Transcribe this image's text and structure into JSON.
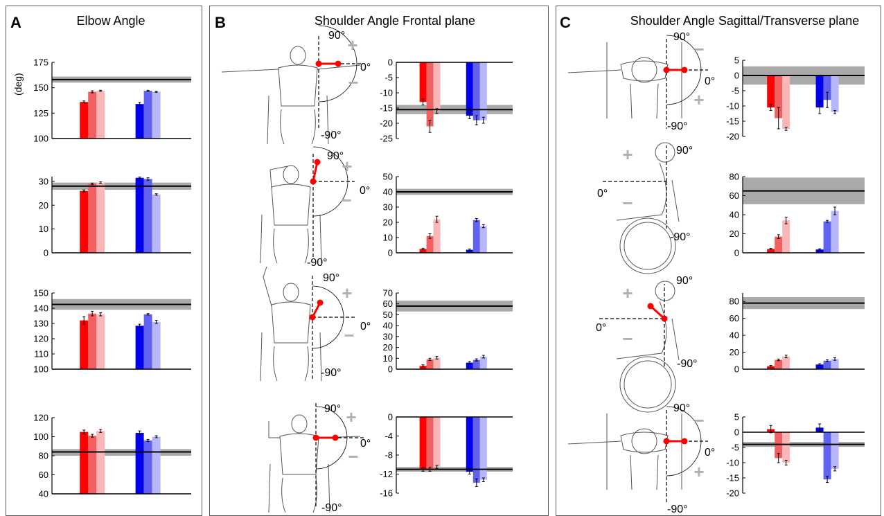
{
  "panels": [
    {
      "letter": "A",
      "title": "Elbow Angle"
    },
    {
      "letter": "B",
      "title": "Shoulder Angle Frontal plane"
    },
    {
      "letter": "C",
      "title": "Shoulder Angle Sagittal/Transverse plane"
    }
  ],
  "ylabel_deg": "(deg)",
  "angle_labels": {
    "deg90": "90°",
    "deg0": "0°",
    "degm90": "-90°"
  },
  "sign_symbols": {
    "plus": "+",
    "minus": "−"
  },
  "colors": {
    "red": [
      "#ff0000",
      "#f06060",
      "#f8b6b6"
    ],
    "blue": [
      "#0000ee",
      "#6262f0",
      "#b6b6f8"
    ],
    "band": "#a9a9a9",
    "refline": "#000000"
  },
  "chart_data": [
    {
      "id": "A1",
      "type": "bar",
      "ylim": [
        100,
        175
      ],
      "yticks": [
        100,
        125,
        150,
        175
      ],
      "reference": {
        "value": 158,
        "band": [
          155,
          161
        ]
      },
      "series": [
        {
          "values": [
            136,
            146,
            147
          ]
        },
        {
          "values": [
            134,
            147,
            146
          ]
        }
      ],
      "errors": [
        [
          1,
          1,
          0.5
        ],
        [
          1.5,
          0.5,
          0.5
        ]
      ]
    },
    {
      "id": "A2",
      "type": "bar",
      "ylim": [
        0,
        32
      ],
      "yticks": [
        0,
        10,
        20,
        30
      ],
      "reference": {
        "value": 28,
        "band": [
          26.5,
          29.5
        ]
      },
      "series": [
        {
          "values": [
            26,
            29,
            29.5
          ]
        },
        {
          "values": [
            31.5,
            31,
            24.5
          ]
        }
      ],
      "errors": [
        [
          0.4,
          0.3,
          0.3
        ],
        [
          0.3,
          0.5,
          0.3
        ]
      ]
    },
    {
      "id": "A3",
      "type": "bar",
      "ylim": [
        100,
        150
      ],
      "yticks": [
        100,
        110,
        120,
        130,
        140,
        150
      ],
      "reference": {
        "value": 142.5,
        "band": [
          139,
          146
        ]
      },
      "series": [
        {
          "values": [
            132,
            136.5,
            136
          ]
        },
        {
          "values": [
            128.5,
            136,
            131
          ]
        }
      ],
      "errors": [
        [
          2.5,
          1.5,
          1
        ],
        [
          1,
          0.5,
          1
        ]
      ]
    },
    {
      "id": "A4",
      "type": "bar",
      "ylim": [
        40,
        120
      ],
      "yticks": [
        40,
        60,
        80,
        100,
        120
      ],
      "reference": {
        "value": 84,
        "band": [
          80,
          87
        ]
      },
      "series": [
        {
          "values": [
            105,
            101,
            106
          ]
        },
        {
          "values": [
            104,
            96,
            100
          ]
        }
      ],
      "errors": [
        [
          2,
          1.5,
          1.5
        ],
        [
          2,
          1,
          1
        ]
      ]
    },
    {
      "id": "B1",
      "type": "bar",
      "ylim": [
        -25,
        0
      ],
      "yticks": [
        0,
        -5,
        -10,
        -15,
        -20,
        -25
      ],
      "reference": {
        "value": -15.5,
        "band": [
          -17,
          -14
        ]
      },
      "series": [
        {
          "values": [
            -13,
            -21,
            -16
          ]
        },
        {
          "values": [
            -17.5,
            -19,
            -19
          ]
        }
      ],
      "errors": [
        [
          1,
          2,
          0.8
        ],
        [
          1,
          1.5,
          1
        ]
      ]
    },
    {
      "id": "B2",
      "type": "bar",
      "ylim": [
        0,
        50
      ],
      "yticks": [
        0,
        10,
        20,
        30,
        40,
        50
      ],
      "reference": {
        "value": 40,
        "band": [
          38,
          42
        ]
      },
      "series": [
        {
          "values": [
            2.5,
            11,
            22
          ]
        },
        {
          "values": [
            2,
            21.5,
            17.5
          ]
        }
      ],
      "errors": [
        [
          0.5,
          1.5,
          2
        ],
        [
          0.5,
          1,
          1
        ]
      ]
    },
    {
      "id": "B3",
      "type": "bar",
      "ylim": [
        0,
        70
      ],
      "yticks": [
        0,
        10,
        20,
        30,
        40,
        50,
        60,
        70
      ],
      "reference": {
        "value": 58,
        "band": [
          53,
          63
        ]
      },
      "series": [
        {
          "values": [
            3,
            9,
            10.5
          ]
        },
        {
          "values": [
            6,
            8.5,
            11.5
          ]
        }
      ],
      "errors": [
        [
          1,
          1,
          1.2
        ],
        [
          1,
          1,
          1.2
        ]
      ]
    },
    {
      "id": "B4",
      "type": "bar",
      "ylim": [
        -16,
        0
      ],
      "yticks": [
        0,
        -4,
        -8,
        -12,
        -16
      ],
      "reference": {
        "value": -11,
        "band": [
          -11.5,
          -10.5
        ]
      },
      "series": [
        {
          "values": [
            -11,
            -11,
            -10.5
          ]
        },
        {
          "values": [
            -11.5,
            -13.8,
            -13.2
          ]
        }
      ],
      "errors": [
        [
          0.4,
          0.4,
          0.3
        ],
        [
          0.5,
          0.8,
          0.4
        ]
      ]
    },
    {
      "id": "C1",
      "type": "bar",
      "ylim": [
        -20,
        5
      ],
      "yticks": [
        5,
        0,
        -5,
        -10,
        -15,
        -20
      ],
      "reference": {
        "value": 0,
        "band": [
          -3,
          3
        ]
      },
      "series": [
        {
          "values": [
            -10.5,
            -14,
            -17.5
          ]
        },
        {
          "values": [
            -10.5,
            -8,
            -12
          ]
        }
      ],
      "errors": [
        [
          1,
          3.5,
          0.5
        ],
        [
          2,
          2.5,
          0.5
        ]
      ]
    },
    {
      "id": "C2",
      "type": "bar",
      "ylim": [
        0,
        80
      ],
      "yticks": [
        0,
        20,
        40,
        60,
        80
      ],
      "reference": {
        "value": 65,
        "band": [
          51,
          79
        ]
      },
      "series": [
        {
          "values": [
            4,
            17,
            34
          ]
        },
        {
          "values": [
            3.5,
            33,
            44
          ]
        }
      ],
      "errors": [
        [
          0.7,
          2,
          3.5
        ],
        [
          0.7,
          1,
          4
        ]
      ]
    },
    {
      "id": "C3",
      "type": "bar",
      "ylim": [
        0,
        90
      ],
      "yticks": [
        0,
        20,
        40,
        60,
        80
      ],
      "reference": {
        "value": 78,
        "band": [
          71,
          85
        ]
      },
      "series": [
        {
          "values": [
            3.5,
            11,
            15
          ]
        },
        {
          "values": [
            5.5,
            10,
            12
          ]
        }
      ],
      "errors": [
        [
          1,
          1,
          1.5
        ],
        [
          1,
          1,
          1.5
        ]
      ]
    },
    {
      "id": "C4",
      "type": "bar",
      "ylim": [
        -20,
        5
      ],
      "yticks": [
        5,
        0,
        -5,
        -10,
        -15,
        -20
      ],
      "reference": {
        "value": -4,
        "band": [
          -4.8,
          -3.2
        ]
      },
      "series": [
        {
          "values": [
            1,
            -8.5,
            -10
          ]
        },
        {
          "values": [
            1.5,
            -15.5,
            -12
          ]
        }
      ],
      "errors": [
        [
          1.2,
          1.5,
          0.8
        ],
        [
          1.2,
          1,
          0.7
        ]
      ]
    }
  ]
}
